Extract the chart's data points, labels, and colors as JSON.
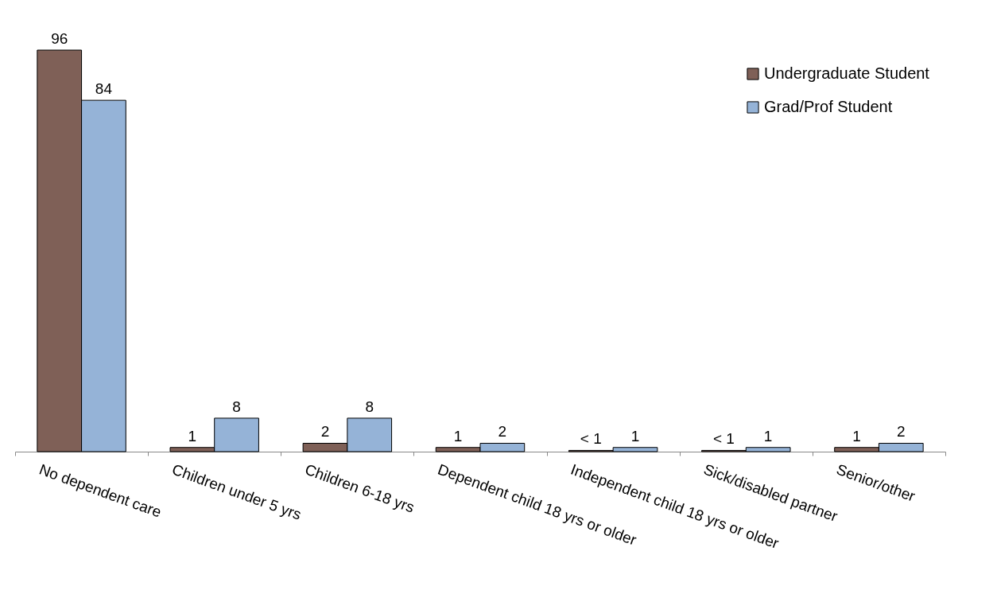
{
  "chart_data": {
    "type": "bar",
    "categories": [
      "No dependent care",
      "Children under 5 yrs",
      "Children 6-18 yrs",
      "Dependent child 18 yrs or older",
      "Independent child 18 yrs or older",
      "Sick/disabled partner",
      "Senior/other"
    ],
    "series": [
      {
        "name": "Undergraduate Student",
        "color": "#7f6057",
        "values": [
          96,
          1,
          2,
          1,
          0.3,
          0.3,
          1
        ],
        "value_labels": [
          "96",
          "1",
          "2",
          "1",
          "< 1",
          "< 1",
          "1"
        ]
      },
      {
        "name": "Grad/Prof Student",
        "color": "#95b3d7",
        "values": [
          84,
          8,
          8,
          2,
          1,
          1,
          2
        ],
        "value_labels": [
          "84",
          "8",
          "8",
          "2",
          "1",
          "1",
          "2"
        ]
      }
    ],
    "grid": false,
    "legend": "top right",
    "tick_labels": "x"
  }
}
